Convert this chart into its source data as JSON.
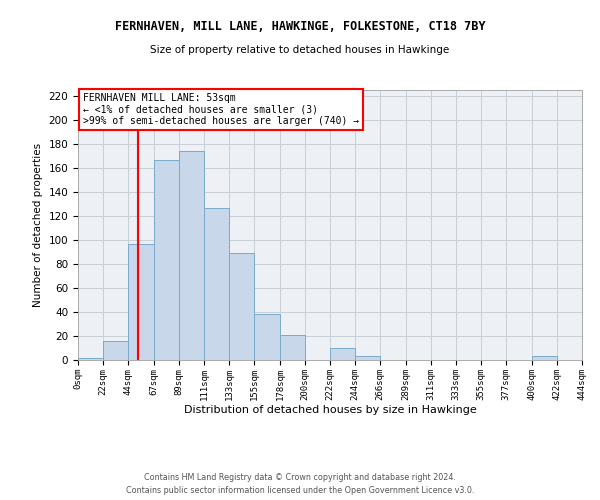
{
  "title": "FERNHAVEN, MILL LANE, HAWKINGE, FOLKESTONE, CT18 7BY",
  "subtitle": "Size of property relative to detached houses in Hawkinge",
  "xlabel": "Distribution of detached houses by size in Hawkinge",
  "ylabel": "Number of detached properties",
  "footnote1": "Contains HM Land Registry data © Crown copyright and database right 2024.",
  "footnote2": "Contains public sector information licensed under the Open Government Licence v3.0.",
  "annotation_line1": "FERNHAVEN MILL LANE: 53sqm",
  "annotation_line2": "← <1% of detached houses are smaller (3)",
  "annotation_line3": ">99% of semi-detached houses are larger (740) →",
  "bar_color": "#c8d8ea",
  "bar_edge_color": "#7aabcc",
  "vline_color": "red",
  "vline_x": 53,
  "bin_edges": [
    0,
    22,
    44,
    67,
    89,
    111,
    133,
    155,
    178,
    200,
    222,
    244,
    266,
    289,
    311,
    333,
    355,
    377,
    400,
    422,
    444
  ],
  "bin_heights": [
    2,
    16,
    97,
    167,
    174,
    127,
    89,
    38,
    21,
    0,
    10,
    3,
    0,
    0,
    0,
    0,
    0,
    0,
    3,
    0
  ],
  "ylim": [
    0,
    225
  ],
  "yticks": [
    0,
    20,
    40,
    60,
    80,
    100,
    120,
    140,
    160,
    180,
    200,
    220
  ],
  "xtick_labels": [
    "0sqm",
    "22sqm",
    "44sqm",
    "67sqm",
    "89sqm",
    "111sqm",
    "133sqm",
    "155sqm",
    "178sqm",
    "200sqm",
    "222sqm",
    "244sqm",
    "266sqm",
    "289sqm",
    "311sqm",
    "333sqm",
    "355sqm",
    "377sqm",
    "400sqm",
    "422sqm",
    "444sqm"
  ],
  "grid_color": "#c8d0d8",
  "bg_color": "#edf1f5"
}
